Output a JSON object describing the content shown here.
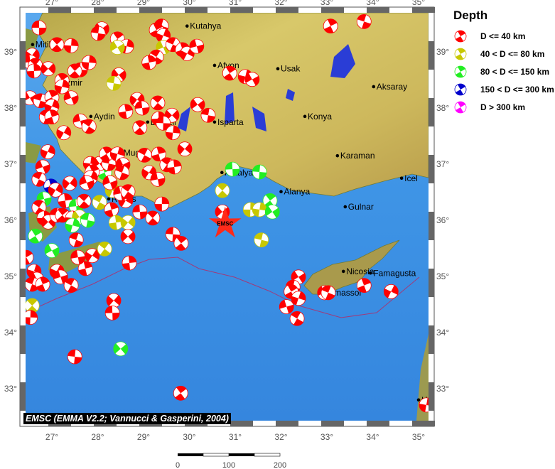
{
  "legend": {
    "title": "Depth",
    "items": [
      {
        "label": "D <= 40 km",
        "color": "#ff0000"
      },
      {
        "label": "40 < D <= 80 km",
        "color": "#c8c800"
      },
      {
        "label": "80 < D <= 150 km",
        "color": "#22ee22"
      },
      {
        "label": "150 < D <= 300 km",
        "color": "#0000cc"
      },
      {
        "label": "D > 300 km",
        "color": "#ff00ff"
      }
    ]
  },
  "credit": "EMSC (EMMA V2.2; Vannucci & Gasperini, 2004)",
  "axes": {
    "lon_ticks": [
      "27°",
      "28°",
      "29°",
      "30°",
      "31°",
      "32°",
      "33°",
      "34°",
      "35°"
    ],
    "lat_ticks": [
      "39°",
      "38°",
      "37°",
      "36°",
      "35°",
      "34°",
      "33°"
    ]
  },
  "scale_bar": {
    "labels": [
      "0",
      "100",
      "200"
    ]
  },
  "marker": {
    "label": "EMSC",
    "lon": 30.78,
    "lat": 35.94,
    "color": "#ff2a1a"
  },
  "cities": [
    {
      "name": "Kutahya",
      "lon": 29.95,
      "lat": 39.46
    },
    {
      "name": "Mitilini",
      "lon": 26.58,
      "lat": 39.13
    },
    {
      "name": "Afyon",
      "lon": 30.55,
      "lat": 38.76
    },
    {
      "name": "Usak",
      "lon": 31.93,
      "lat": 38.7
    },
    {
      "name": "Izmir",
      "lon": 27.2,
      "lat": 38.45
    },
    {
      "name": "Aksaray",
      "lon": 34.02,
      "lat": 38.38
    },
    {
      "name": "Aydin",
      "lon": 27.85,
      "lat": 37.85
    },
    {
      "name": "Denizli",
      "lon": 29.09,
      "lat": 37.75
    },
    {
      "name": "Isparta",
      "lon": 30.55,
      "lat": 37.75
    },
    {
      "name": "Konya",
      "lon": 32.52,
      "lat": 37.85
    },
    {
      "name": "Mugla",
      "lon": 28.5,
      "lat": 37.2
    },
    {
      "name": "Karaman",
      "lon": 33.23,
      "lat": 37.15
    },
    {
      "name": "Antalya",
      "lon": 30.71,
      "lat": 36.85
    },
    {
      "name": "Icel",
      "lon": 34.63,
      "lat": 36.75
    },
    {
      "name": "Alanya",
      "lon": 32.0,
      "lat": 36.51
    },
    {
      "name": "Rodos",
      "lon": 28.24,
      "lat": 36.38
    },
    {
      "name": "Gulnar",
      "lon": 33.4,
      "lat": 36.24
    },
    {
      "name": "Nicosia",
      "lon": 33.36,
      "lat": 35.09
    },
    {
      "name": "Famagusta",
      "lon": 33.95,
      "lat": 35.06
    },
    {
      "name": "Limassol",
      "lon": 32.95,
      "lat": 34.71
    },
    {
      "name": "H",
      "lon": 35.0,
      "lat": 32.8
    }
  ],
  "events": [
    [
      26.72,
      39.43,
      1
    ],
    [
      27.11,
      39.13,
      1
    ],
    [
      27.42,
      39.11,
      1
    ],
    [
      28.09,
      39.41,
      1
    ],
    [
      28.01,
      39.33,
      1
    ],
    [
      28.43,
      39.23,
      1
    ],
    [
      28.63,
      39.1,
      1
    ],
    [
      28.43,
      39.08,
      2
    ],
    [
      29.39,
      39.46,
      1
    ],
    [
      29.28,
      39.39,
      1
    ],
    [
      29.43,
      39.29,
      1
    ],
    [
      29.43,
      39.08,
      2
    ],
    [
      29.64,
      39.13,
      1
    ],
    [
      29.85,
      39.04,
      1
    ],
    [
      29.95,
      38.97,
      1
    ],
    [
      30.16,
      39.1,
      1
    ],
    [
      29.28,
      38.91,
      1
    ],
    [
      29.12,
      38.81,
      1
    ],
    [
      26.57,
      38.94,
      1
    ],
    [
      26.53,
      38.82,
      1
    ],
    [
      26.64,
      38.76,
      1
    ],
    [
      26.61,
      38.66,
      1
    ],
    [
      26.92,
      38.7,
      1
    ],
    [
      27.62,
      38.68,
      1
    ],
    [
      27.5,
      38.66,
      1
    ],
    [
      27.81,
      38.81,
      1
    ],
    [
      28.46,
      38.59,
      1
    ],
    [
      28.35,
      38.44,
      2
    ],
    [
      27.22,
      38.49,
      1
    ],
    [
      27.22,
      38.38,
      1
    ],
    [
      26.52,
      38.18,
      1
    ],
    [
      26.75,
      38.13,
      1
    ],
    [
      27.0,
      38.19,
      1
    ],
    [
      27.0,
      38.03,
      1
    ],
    [
      27.42,
      38.18,
      1
    ],
    [
      26.88,
      37.84,
      1
    ],
    [
      27.0,
      37.84,
      1
    ],
    [
      27.26,
      37.56,
      1
    ],
    [
      27.62,
      37.77,
      1
    ],
    [
      27.81,
      37.67,
      1
    ],
    [
      28.61,
      37.94,
      1
    ],
    [
      28.86,
      38.15,
      1
    ],
    [
      28.97,
      38.0,
      1
    ],
    [
      29.31,
      38.09,
      1
    ],
    [
      29.33,
      37.81,
      1
    ],
    [
      29.62,
      37.87,
      1
    ],
    [
      29.43,
      37.73,
      1
    ],
    [
      28.92,
      37.65,
      1
    ],
    [
      29.64,
      37.56,
      1
    ],
    [
      30.18,
      38.06,
      1
    ],
    [
      30.41,
      37.87,
      1
    ],
    [
      30.88,
      38.62,
      1
    ],
    [
      31.22,
      38.56,
      1
    ],
    [
      31.37,
      38.51,
      1
    ],
    [
      33.81,
      39.54,
      1
    ],
    [
      33.08,
      39.46,
      1
    ],
    [
      26.91,
      37.22,
      1
    ],
    [
      26.8,
      36.95,
      1
    ],
    [
      26.72,
      36.73,
      1
    ],
    [
      26.98,
      36.61,
      4
    ],
    [
      27.08,
      36.54,
      1
    ],
    [
      26.83,
      36.38,
      3
    ],
    [
      26.72,
      36.23,
      1
    ],
    [
      27.29,
      36.35,
      1
    ],
    [
      27.39,
      36.66,
      1
    ],
    [
      27.53,
      36.25,
      3
    ],
    [
      27.7,
      36.34,
      1
    ],
    [
      26.83,
      36.04,
      1
    ],
    [
      26.92,
      35.97,
      1
    ],
    [
      27.11,
      36.09,
      1
    ],
    [
      27.23,
      36.09,
      1
    ],
    [
      27.45,
      36.04,
      1
    ],
    [
      27.6,
      36.06,
      2
    ],
    [
      27.78,
      36.0,
      3
    ],
    [
      26.64,
      35.72,
      3
    ],
    [
      27.45,
      35.91,
      3
    ],
    [
      27.0,
      35.46,
      3
    ],
    [
      27.53,
      35.65,
      1
    ],
    [
      28.15,
      36.85,
      3
    ],
    [
      28.32,
      36.53,
      2
    ],
    [
      28.27,
      36.67,
      1
    ],
    [
      28.04,
      36.32,
      2
    ],
    [
      28.3,
      36.19,
      1
    ],
    [
      28.61,
      36.35,
      1
    ],
    [
      28.5,
      36.48,
      1
    ],
    [
      28.66,
      36.51,
      1
    ],
    [
      28.4,
      35.96,
      2
    ],
    [
      28.66,
      35.96,
      2
    ],
    [
      28.92,
      36.15,
      1
    ],
    [
      29.2,
      36.04,
      1
    ],
    [
      29.4,
      36.29,
      1
    ],
    [
      28.66,
      35.71,
      1
    ],
    [
      29.64,
      35.75,
      1
    ],
    [
      29.82,
      35.59,
      1
    ],
    [
      27.84,
      37.01,
      1
    ],
    [
      28.04,
      37.01,
      1
    ],
    [
      28.24,
      37.01,
      1
    ],
    [
      28.19,
      37.18,
      1
    ],
    [
      28.43,
      37.18,
      1
    ],
    [
      28.55,
      36.99,
      1
    ],
    [
      28.53,
      36.85,
      1
    ],
    [
      27.88,
      36.86,
      1
    ],
    [
      27.84,
      36.76,
      1
    ],
    [
      27.76,
      36.67,
      1
    ],
    [
      29.02,
      37.16,
      1
    ],
    [
      29.33,
      37.18,
      1
    ],
    [
      29.12,
      36.85,
      1
    ],
    [
      29.31,
      36.73,
      1
    ],
    [
      29.51,
      36.99,
      1
    ],
    [
      29.67,
      36.95,
      1
    ],
    [
      29.9,
      37.27,
      1
    ],
    [
      30.94,
      36.91,
      3
    ],
    [
      30.72,
      36.53,
      2
    ],
    [
      31.33,
      36.19,
      2
    ],
    [
      30.72,
      36.15,
      1
    ],
    [
      31.53,
      36.86,
      3
    ],
    [
      31.76,
      36.35,
      3
    ],
    [
      31.53,
      36.19,
      2
    ],
    [
      31.81,
      36.15,
      3
    ],
    [
      31.57,
      35.65,
      2
    ],
    [
      26.44,
      35.34,
      1
    ],
    [
      26.61,
      35.09,
      1
    ],
    [
      26.67,
      34.95,
      1
    ],
    [
      26.57,
      34.86,
      1
    ],
    [
      26.8,
      34.86,
      1
    ],
    [
      27.11,
      35.09,
      1
    ],
    [
      27.19,
      34.99,
      1
    ],
    [
      27.42,
      34.84,
      1
    ],
    [
      27.73,
      35.14,
      1
    ],
    [
      27.88,
      35.37,
      1
    ],
    [
      27.57,
      35.34,
      1
    ],
    [
      28.15,
      35.49,
      2
    ],
    [
      28.69,
      35.24,
      1
    ],
    [
      28.35,
      34.57,
      1
    ],
    [
      28.32,
      34.35,
      1
    ],
    [
      26.57,
      34.48,
      2
    ],
    [
      26.53,
      34.27,
      1
    ],
    [
      28.5,
      33.71,
      3
    ],
    [
      27.5,
      33.57,
      1
    ],
    [
      29.81,
      32.92,
      1
    ],
    [
      35.17,
      32.71,
      1
    ],
    [
      32.38,
      34.99,
      1
    ],
    [
      32.26,
      34.81,
      1
    ],
    [
      32.22,
      34.73,
      1
    ],
    [
      32.38,
      34.61,
      1
    ],
    [
      32.95,
      34.71,
      1
    ],
    [
      33.03,
      34.71,
      1
    ],
    [
      33.81,
      34.84,
      1
    ],
    [
      34.4,
      34.73,
      1
    ],
    [
      32.12,
      34.46,
      1
    ],
    [
      32.35,
      34.25,
      1
    ]
  ]
}
